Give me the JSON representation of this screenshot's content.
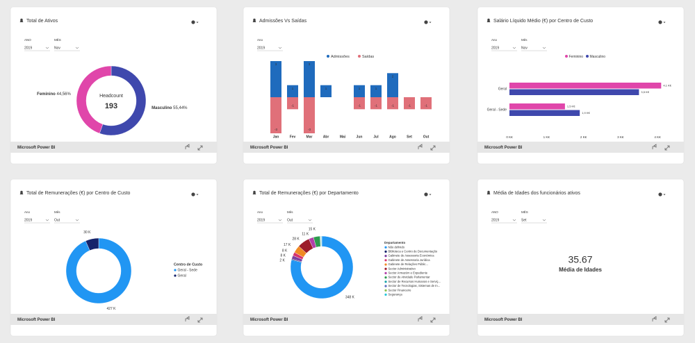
{
  "cards": [
    {
      "title": "Total de Ativos",
      "filters": [
        {
          "label": "ANO",
          "value": "2019"
        },
        {
          "label": "MÊS",
          "value": "Nov"
        }
      ],
      "chart_data": {
        "type": "donut",
        "center_label": "Headcount",
        "center_value": 193,
        "categories": [
          "Masculino",
          "Feminino"
        ],
        "values": [
          55.44,
          44.56
        ],
        "value_labels": [
          "55,44%",
          "44,56%"
        ],
        "colors": [
          "#3f48ad",
          "#e046aa"
        ]
      },
      "footer": "Microsoft Power BI"
    },
    {
      "title": "Admissões Vs Saídas",
      "filters": [
        {
          "label": "Ano",
          "value": "2019"
        }
      ],
      "chart_data": {
        "type": "column",
        "categories": [
          "Jan",
          "Fev",
          "Mar",
          "Abr",
          "Mai",
          "Jun",
          "Jul",
          "Ago",
          "Set",
          "Out"
        ],
        "ylim": [
          -3,
          3
        ],
        "series": [
          {
            "name": "Admissões",
            "color": "#1f6bbd",
            "values": [
              3,
              1,
              3,
              1,
              null,
              1,
              1,
              2,
              null,
              null
            ]
          },
          {
            "name": "Saídas",
            "color": "#e07079",
            "values": [
              -3,
              -1,
              -3,
              null,
              null,
              -1,
              -1,
              -1,
              -1,
              -1
            ]
          }
        ]
      },
      "footer": "Microsoft Power BI"
    },
    {
      "title": "Salário Líquido Médio (€) por Centro de Custo",
      "filters": [
        {
          "label": "Ano",
          "value": "2019"
        },
        {
          "label": "Mês",
          "value": "Nov"
        }
      ],
      "chart_data": {
        "type": "hbar",
        "categories": [
          "Geral",
          "Geral - Sede"
        ],
        "xlim": [
          0,
          4
        ],
        "xticks": [
          {
            "value": 0,
            "label": "0 K€"
          },
          {
            "value": 1,
            "label": "1 K€"
          },
          {
            "value": 2,
            "label": "2 K€"
          },
          {
            "value": 3,
            "label": "3 K€"
          },
          {
            "value": 4,
            "label": "4 K€"
          }
        ],
        "series": [
          {
            "name": "Feminino",
            "color": "#e046aa",
            "values": [
              4.1,
              1.5
            ],
            "value_labels": [
              "4,1 K€",
              "1,5 K€"
            ]
          },
          {
            "name": "Masculino",
            "color": "#3f48ad",
            "values": [
              3.5,
              1.9
            ],
            "value_labels": [
              "3,5 K€",
              "1,9 K€"
            ]
          }
        ]
      },
      "footer": "Microsoft Power BI"
    },
    {
      "title": "Total de Remunerações (€) por Centro de Custo",
      "filters": [
        {
          "label": "Ano",
          "value": "2019"
        },
        {
          "label": "Mês",
          "value": "Out"
        }
      ],
      "chart_data": {
        "type": "donut",
        "legend_title": "Centro de Custo",
        "categories": [
          "Geral - Sede",
          "Geral"
        ],
        "values": [
          427000,
          30000
        ],
        "value_labels": [
          "427 K",
          "30 K"
        ],
        "colors": [
          "#2196f3",
          "#15236b"
        ]
      },
      "footer": "Microsoft Power BI"
    },
    {
      "title": "Total de Remunerações (€) por Departamento",
      "filters": [
        {
          "label": "Ano",
          "value": "2019"
        },
        {
          "label": "Mês",
          "value": "Out"
        }
      ],
      "chart_data": {
        "type": "donut",
        "legend_title": "Departamento",
        "categories": [
          "Não definido",
          "Biblioteca e Centro de Documentação",
          "Gabinete de Assessoria Económica",
          "Gabinete de Assessoria Jurídica",
          "Gabinete de Relações Públic...",
          "Sector Administrativo",
          "Sector Armazém e Expediente",
          "Sector de Atividade Parlamentar",
          "Sector de Recursos Humanos e Serviç...",
          "Sector de Tecnologias, Sistemas de In...",
          "Sector Financeiro",
          "Segurança"
        ],
        "values": [
          348000,
          2000,
          8000,
          8000,
          17000,
          28000,
          11000,
          15000,
          1000,
          1000,
          1000,
          1000
        ],
        "value_labels": [
          "348 K",
          "2 K",
          "8 K",
          "8 K",
          "17 K",
          "28 K",
          "11 K",
          "15 K",
          null,
          null,
          null,
          null
        ],
        "colors": [
          "#2196f3",
          "#15236b",
          "#7b3fa0",
          "#d6336c",
          "#f08a24",
          "#9c1c2a",
          "#b23fa8",
          "#2e9b4f",
          "#17a2a8",
          "#5c6bc0",
          "#8bc34a",
          "#26c6da"
        ]
      },
      "footer": "Microsoft Power BI"
    },
    {
      "title": "Média de Idades dos funcionários ativos",
      "filters": [
        {
          "label": "ANO",
          "value": "2019"
        },
        {
          "label": "MÊS",
          "value": "Set"
        }
      ],
      "chart_data": {
        "type": "card",
        "value": 35.67,
        "label": "Média de Idades"
      },
      "footer": "Microsoft Power BI"
    }
  ]
}
